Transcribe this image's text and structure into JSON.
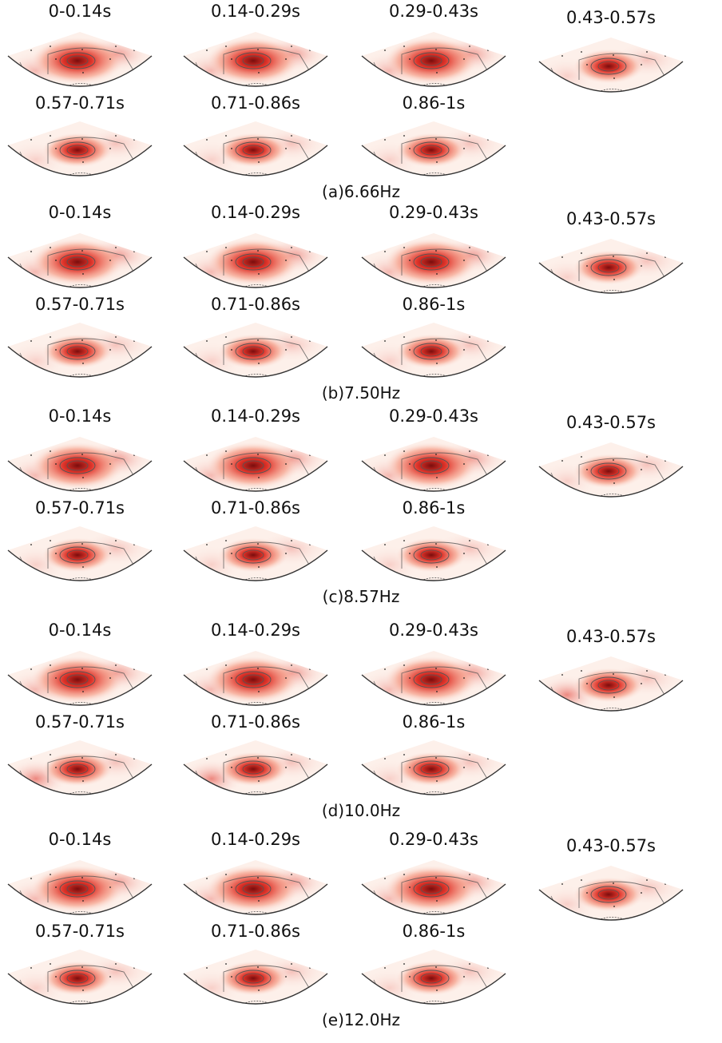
{
  "colors": {
    "peak": "#7a0d0d",
    "high": "#e0342a",
    "mid": "#f6a08a",
    "low": "#fdf0ea",
    "contour": "#555555",
    "outline": "#333333"
  },
  "groups": [
    {
      "caption": "(a)6.66Hz",
      "panels": [
        "0-0.14s",
        "0.14-0.29s",
        "0.29-0.43s",
        "0.43-0.57s",
        "0.57-0.71s",
        "0.71-0.86s",
        "0.86-1s"
      ]
    },
    {
      "caption": "(b)7.50Hz",
      "panels": [
        "0-0.14s",
        "0.14-0.29s",
        "0.29-0.43s",
        "0.43-0.57s",
        "0.57-0.71s",
        "0.71-0.86s",
        "0.86-1s"
      ]
    },
    {
      "caption": "(c)8.57Hz",
      "panels": [
        "0-0.14s",
        "0.14-0.29s",
        "0.29-0.43s",
        "0.43-0.57s",
        "0.57-0.71s",
        "0.71-0.86s",
        "0.86-1s"
      ]
    },
    {
      "caption": "(d)10.0Hz",
      "panels": [
        "0-0.14s",
        "0.14-0.29s",
        "0.29-0.43s",
        "0.43-0.57s",
        "0.57-0.71s",
        "0.71-0.86s",
        "0.86-1s"
      ]
    },
    {
      "caption": "(e)12.0Hz",
      "panels": [
        "0-0.14s",
        "0.14-0.29s",
        "0.29-0.43s",
        "0.43-0.57s",
        "0.57-0.71s",
        "0.71-0.86s",
        "0.86-1s"
      ]
    }
  ]
}
